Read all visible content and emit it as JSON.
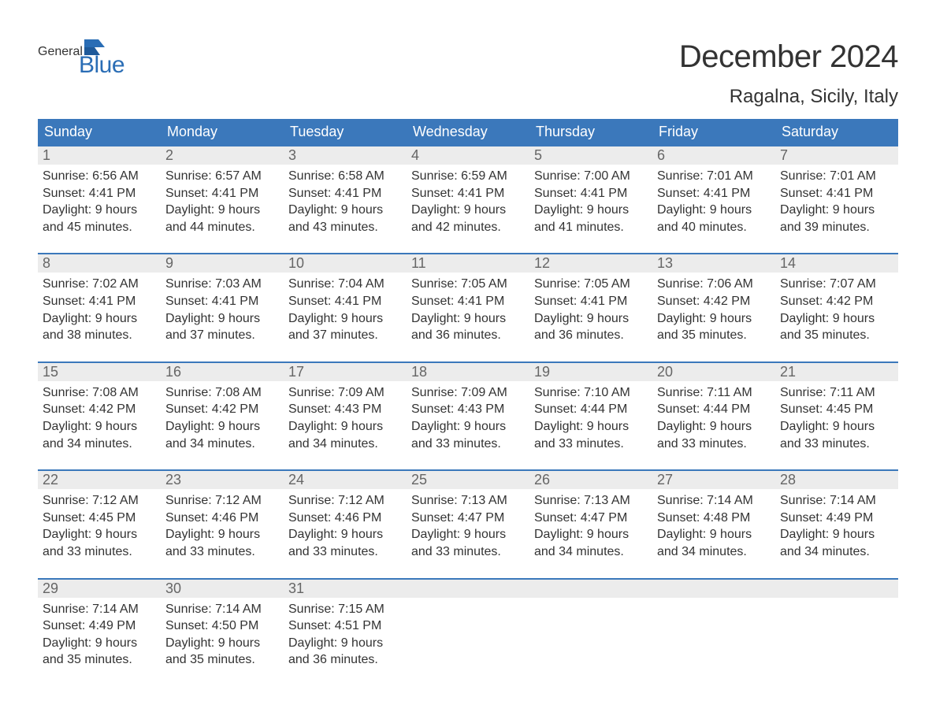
{
  "logo": {
    "line1": "General",
    "line2": "Blue",
    "color_general": "#444444",
    "color_blue": "#2a6db5",
    "flag_color": "#2a6db5"
  },
  "title": "December 2024",
  "location": "Ragalna, Sicily, Italy",
  "colors": {
    "header_bg": "#3b78bb",
    "header_text": "#ffffff",
    "daynum_bg": "#ececec",
    "daynum_text": "#666666",
    "body_text": "#333333",
    "week_border": "#3b78bb",
    "page_bg": "#ffffff"
  },
  "fonts": {
    "title_size": 40,
    "location_size": 24,
    "dow_size": 18,
    "daynum_size": 18,
    "body_size": 16
  },
  "day_headers": [
    "Sunday",
    "Monday",
    "Tuesday",
    "Wednesday",
    "Thursday",
    "Friday",
    "Saturday"
  ],
  "weeks": [
    [
      {
        "n": "1",
        "sunrise": "6:56 AM",
        "sunset": "4:41 PM",
        "dl1": "9 hours",
        "dl2": "and 45 minutes."
      },
      {
        "n": "2",
        "sunrise": "6:57 AM",
        "sunset": "4:41 PM",
        "dl1": "9 hours",
        "dl2": "and 44 minutes."
      },
      {
        "n": "3",
        "sunrise": "6:58 AM",
        "sunset": "4:41 PM",
        "dl1": "9 hours",
        "dl2": "and 43 minutes."
      },
      {
        "n": "4",
        "sunrise": "6:59 AM",
        "sunset": "4:41 PM",
        "dl1": "9 hours",
        "dl2": "and 42 minutes."
      },
      {
        "n": "5",
        "sunrise": "7:00 AM",
        "sunset": "4:41 PM",
        "dl1": "9 hours",
        "dl2": "and 41 minutes."
      },
      {
        "n": "6",
        "sunrise": "7:01 AM",
        "sunset": "4:41 PM",
        "dl1": "9 hours",
        "dl2": "and 40 minutes."
      },
      {
        "n": "7",
        "sunrise": "7:01 AM",
        "sunset": "4:41 PM",
        "dl1": "9 hours",
        "dl2": "and 39 minutes."
      }
    ],
    [
      {
        "n": "8",
        "sunrise": "7:02 AM",
        "sunset": "4:41 PM",
        "dl1": "9 hours",
        "dl2": "and 38 minutes."
      },
      {
        "n": "9",
        "sunrise": "7:03 AM",
        "sunset": "4:41 PM",
        "dl1": "9 hours",
        "dl2": "and 37 minutes."
      },
      {
        "n": "10",
        "sunrise": "7:04 AM",
        "sunset": "4:41 PM",
        "dl1": "9 hours",
        "dl2": "and 37 minutes."
      },
      {
        "n": "11",
        "sunrise": "7:05 AM",
        "sunset": "4:41 PM",
        "dl1": "9 hours",
        "dl2": "and 36 minutes."
      },
      {
        "n": "12",
        "sunrise": "7:05 AM",
        "sunset": "4:41 PM",
        "dl1": "9 hours",
        "dl2": "and 36 minutes."
      },
      {
        "n": "13",
        "sunrise": "7:06 AM",
        "sunset": "4:42 PM",
        "dl1": "9 hours",
        "dl2": "and 35 minutes."
      },
      {
        "n": "14",
        "sunrise": "7:07 AM",
        "sunset": "4:42 PM",
        "dl1": "9 hours",
        "dl2": "and 35 minutes."
      }
    ],
    [
      {
        "n": "15",
        "sunrise": "7:08 AM",
        "sunset": "4:42 PM",
        "dl1": "9 hours",
        "dl2": "and 34 minutes."
      },
      {
        "n": "16",
        "sunrise": "7:08 AM",
        "sunset": "4:42 PM",
        "dl1": "9 hours",
        "dl2": "and 34 minutes."
      },
      {
        "n": "17",
        "sunrise": "7:09 AM",
        "sunset": "4:43 PM",
        "dl1": "9 hours",
        "dl2": "and 34 minutes."
      },
      {
        "n": "18",
        "sunrise": "7:09 AM",
        "sunset": "4:43 PM",
        "dl1": "9 hours",
        "dl2": "and 33 minutes."
      },
      {
        "n": "19",
        "sunrise": "7:10 AM",
        "sunset": "4:44 PM",
        "dl1": "9 hours",
        "dl2": "and 33 minutes."
      },
      {
        "n": "20",
        "sunrise": "7:11 AM",
        "sunset": "4:44 PM",
        "dl1": "9 hours",
        "dl2": "and 33 minutes."
      },
      {
        "n": "21",
        "sunrise": "7:11 AM",
        "sunset": "4:45 PM",
        "dl1": "9 hours",
        "dl2": "and 33 minutes."
      }
    ],
    [
      {
        "n": "22",
        "sunrise": "7:12 AM",
        "sunset": "4:45 PM",
        "dl1": "9 hours",
        "dl2": "and 33 minutes."
      },
      {
        "n": "23",
        "sunrise": "7:12 AM",
        "sunset": "4:46 PM",
        "dl1": "9 hours",
        "dl2": "and 33 minutes."
      },
      {
        "n": "24",
        "sunrise": "7:12 AM",
        "sunset": "4:46 PM",
        "dl1": "9 hours",
        "dl2": "and 33 minutes."
      },
      {
        "n": "25",
        "sunrise": "7:13 AM",
        "sunset": "4:47 PM",
        "dl1": "9 hours",
        "dl2": "and 33 minutes."
      },
      {
        "n": "26",
        "sunrise": "7:13 AM",
        "sunset": "4:47 PM",
        "dl1": "9 hours",
        "dl2": "and 34 minutes."
      },
      {
        "n": "27",
        "sunrise": "7:14 AM",
        "sunset": "4:48 PM",
        "dl1": "9 hours",
        "dl2": "and 34 minutes."
      },
      {
        "n": "28",
        "sunrise": "7:14 AM",
        "sunset": "4:49 PM",
        "dl1": "9 hours",
        "dl2": "and 34 minutes."
      }
    ],
    [
      {
        "n": "29",
        "sunrise": "7:14 AM",
        "sunset": "4:49 PM",
        "dl1": "9 hours",
        "dl2": "and 35 minutes."
      },
      {
        "n": "30",
        "sunrise": "7:14 AM",
        "sunset": "4:50 PM",
        "dl1": "9 hours",
        "dl2": "and 35 minutes."
      },
      {
        "n": "31",
        "sunrise": "7:15 AM",
        "sunset": "4:51 PM",
        "dl1": "9 hours",
        "dl2": "and 36 minutes."
      },
      null,
      null,
      null,
      null
    ]
  ],
  "labels": {
    "sunrise": "Sunrise:",
    "sunset": "Sunset:",
    "daylight": "Daylight:"
  }
}
